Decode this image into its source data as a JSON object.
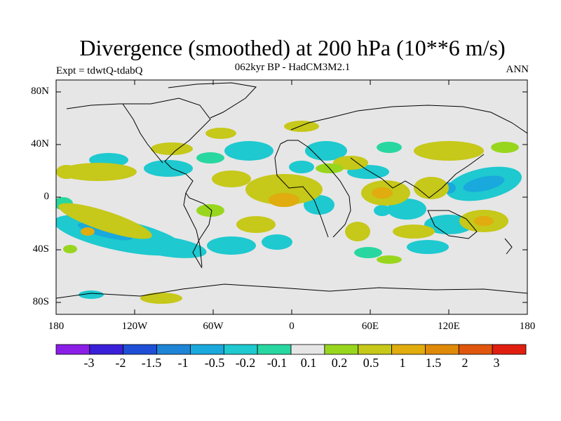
{
  "title": "Divergence (smoothed) at 200 hPa (10**6 m/s)",
  "subtitle": "062kyr BP - HadCM3M2.1",
  "experiment_label": "Expt = tdwtQ-tdabQ",
  "period_label": "ANN",
  "latitude_ticks": [
    "80N",
    "40N",
    "0",
    "40S",
    "80S"
  ],
  "longitude_ticks": [
    "180",
    "120W",
    "60W",
    "0",
    "60E",
    "120E",
    "180"
  ],
  "colorbar": {
    "labels": [
      "-3",
      "-2",
      "-1.5",
      "-1",
      "-0.5",
      "-0.2",
      "-0.1",
      "0.1",
      "0.2",
      "0.5",
      "1",
      "1.5",
      "2",
      "3"
    ],
    "colors": [
      "#8a1ee6",
      "#3a1fd8",
      "#1e4fd6",
      "#1e84d6",
      "#19a9dc",
      "#1ec9cf",
      "#28d7a0",
      "#e6e6e6",
      "#98d61e",
      "#c6c81a",
      "#e0ac0e",
      "#e08a0a",
      "#e0560c",
      "#e01f10"
    ]
  },
  "colors": {
    "background": "#e6e6e6",
    "positive_light": "#98d61e",
    "positive_mid": "#c6c81a",
    "positive_strong": "#e0ac0e",
    "negative_light": "#28d7a0",
    "negative_mid": "#1ec9cf",
    "negative_strong": "#19a9dc"
  }
}
